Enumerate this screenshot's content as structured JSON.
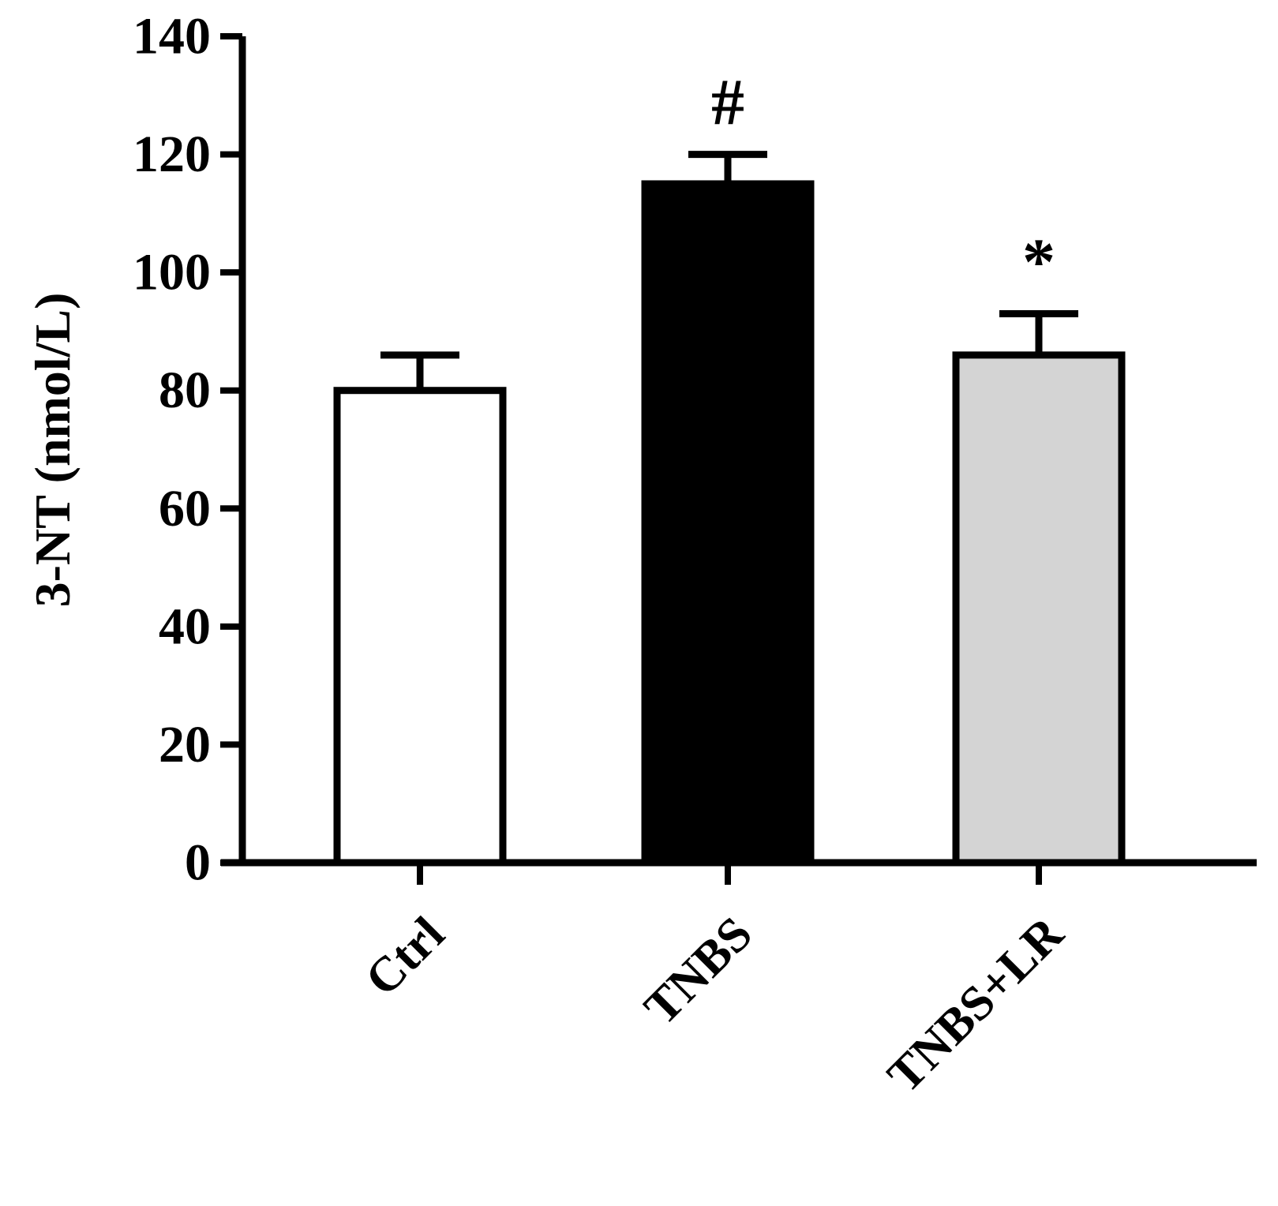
{
  "chart_data": {
    "type": "bar",
    "title": "",
    "xlabel": "",
    "ylabel": "3-NT (nmol/L)",
    "ylim": [
      0,
      140
    ],
    "yticks": [
      0,
      20,
      40,
      60,
      80,
      100,
      120,
      140
    ],
    "grid": false,
    "legend": "none",
    "categories": [
      "Ctrl",
      "TNBS",
      "TNBS+LR"
    ],
    "values": [
      80,
      115,
      86
    ],
    "errors": [
      6,
      5,
      7
    ],
    "bar_colors": [
      "#ffffff",
      "#000000",
      "#d4d4d4"
    ],
    "annotations": [
      "",
      "#",
      "*"
    ]
  }
}
